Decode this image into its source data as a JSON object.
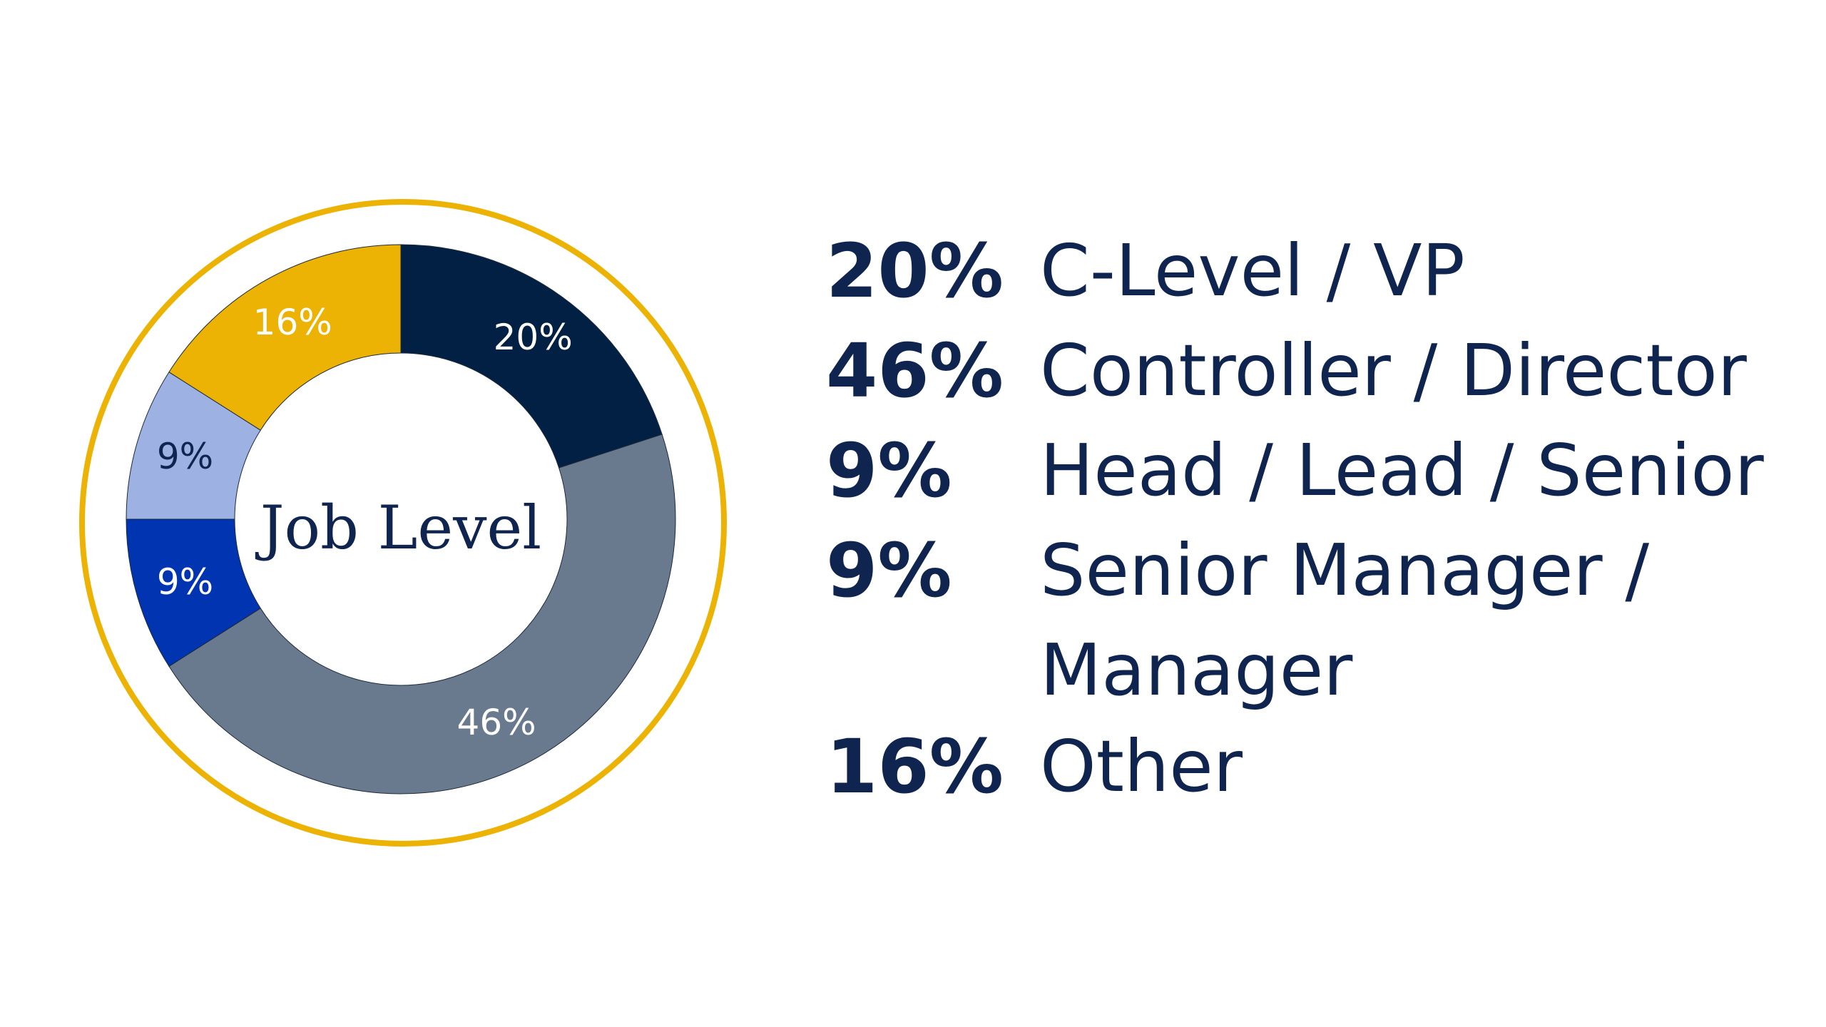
{
  "chart_data": {
    "type": "pie",
    "title": "Job Level",
    "categories": [
      "C-Level / VP",
      "Controller / Director",
      "Senior Manager / Manager",
      "Head / Lead / Senior",
      "Other"
    ],
    "values": [
      20,
      46,
      9,
      9,
      16
    ],
    "slice_labels": [
      "20%",
      "46%",
      "9%",
      "9%",
      "16%"
    ],
    "colors": [
      "#022044",
      "#697a8f",
      "#0034b0",
      "#9eb1e3",
      "#ecb204"
    ],
    "slice_label_colors": [
      "#ffffff",
      "#ffffff",
      "#ffffff",
      "#0f2550",
      "#ffffff"
    ],
    "ring_color": "#ecb204",
    "legend": [
      {
        "percent": "20%",
        "label": "C-Level / VP"
      },
      {
        "percent": "46%",
        "label": "Controller / Director"
      },
      {
        "percent": "9%",
        "label": "Head / Lead / Senior"
      },
      {
        "percent": "9%",
        "label": "Senior Manager / Manager"
      },
      {
        "percent": "16%",
        "label": "Other"
      }
    ],
    "legend_placement": "right"
  }
}
